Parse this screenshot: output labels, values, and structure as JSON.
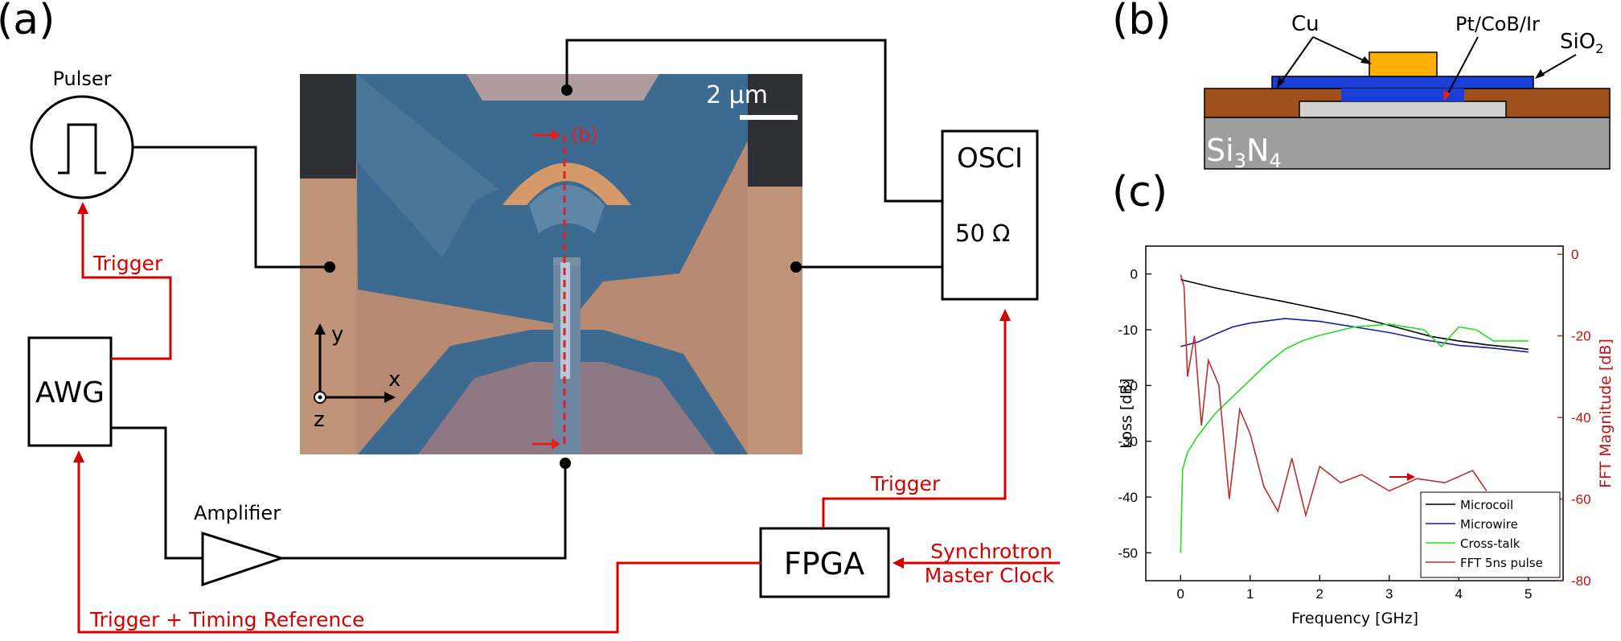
{
  "panel_labels": {
    "a": "(a)",
    "b": "(b)",
    "c": "(c)"
  },
  "devices": {
    "pulser": "Pulser",
    "osci": "OSCI",
    "osci_impedance": "50 Ω",
    "awg": "AWG",
    "amplifier": "Amplifier",
    "fpga": "FPGA"
  },
  "signals": {
    "trigger_pulser": "Trigger",
    "trigger_osci": "Trigger",
    "trigger_timing": "Trigger + Timing Reference",
    "sync_line1": "Synchrotron",
    "sync_line2": "Master Clock"
  },
  "micrograph": {
    "scale": "2 μm",
    "marker": "(b)",
    "axis_x": "x",
    "axis_y": "y",
    "axis_z": "z"
  },
  "cross_section": {
    "cu": "Cu",
    "pt": "Pt/CoB/Ir",
    "sio2": "SiO",
    "sio2_sub": "2",
    "si3n4_a": "Si",
    "si3n4_sub1": "3",
    "si3n4_b": "N",
    "si3n4_sub2": "4",
    "colors": {
      "cu": "#ffb000",
      "pt": "#1a3fd8",
      "sio2": "#a0501a",
      "membrane": "#9e9e9e",
      "gap": "#d2d2d2"
    }
  },
  "chart_data": {
    "type": "line",
    "xlabel": "Frequency [GHz]",
    "ylabel": "Loss [dB]",
    "ylabel_right": "FFT Magnitude [dB]",
    "xlim": [
      -0.5,
      5.5
    ],
    "ylim": [
      -55,
      5
    ],
    "ylim_right": [
      -80,
      2
    ],
    "xticks": [
      "0",
      "1",
      "2",
      "3",
      "4",
      "5"
    ],
    "yticks": [
      "0",
      "-10",
      "-20",
      "-30",
      "-40",
      "-50"
    ],
    "yticks_right": [
      "0",
      "-20",
      "-40",
      "-60",
      "-80"
    ],
    "arrow_annotation": "→ right axis",
    "series": [
      {
        "name": "Microcoil",
        "color": "#000000",
        "axis": "left",
        "x": [
          0,
          0.5,
          1,
          1.5,
          2,
          2.5,
          3,
          3.3,
          3.6,
          4,
          4.4,
          4.8,
          5
        ],
        "values": [
          -1,
          -2.5,
          -3.8,
          -5,
          -6.3,
          -7.6,
          -9.2,
          -10.2,
          -11.2,
          -12,
          -12.7,
          -13.2,
          -13.5
        ]
      },
      {
        "name": "Microwire",
        "color": "#1c1c9c",
        "axis": "left",
        "x": [
          0,
          0.25,
          0.5,
          0.75,
          1,
          1.5,
          2,
          2.5,
          3,
          3.5,
          4,
          4.5,
          5
        ],
        "values": [
          -13,
          -12.2,
          -10.8,
          -9.5,
          -8.8,
          -8,
          -8.5,
          -9.5,
          -10.5,
          -11.8,
          -12.8,
          -13.3,
          -14
        ]
      },
      {
        "name": "Cross-talk",
        "color": "#22dd22",
        "axis": "left",
        "x": [
          0,
          0.03,
          0.1,
          0.25,
          0.5,
          0.75,
          1,
          1.25,
          1.5,
          1.75,
          2,
          2.5,
          3,
          3.5,
          3.75,
          4,
          4.25,
          4.5,
          5
        ],
        "values": [
          -50,
          -35,
          -32,
          -29,
          -25,
          -22,
          -19,
          -16,
          -13.5,
          -12,
          -11,
          -9.5,
          -9,
          -10,
          -13,
          -9.5,
          -10,
          -12,
          -12
        ]
      },
      {
        "name": "FFT 5ns pulse",
        "color": "#b83030",
        "axis": "right",
        "x": [
          0,
          0.05,
          0.1,
          0.2,
          0.3,
          0.4,
          0.55,
          0.7,
          0.85,
          1,
          1.2,
          1.4,
          1.6,
          1.8,
          2,
          2.3,
          2.6,
          3,
          3.4,
          3.8,
          4.2,
          4.4
        ],
        "values": [
          -5,
          -8,
          -30,
          -20,
          -42,
          -26,
          -32,
          -60,
          -38,
          -44,
          -57,
          -63,
          -50,
          -64,
          -52,
          -56,
          -54,
          -58,
          -55,
          -56,
          -53,
          -58
        ]
      }
    ]
  }
}
